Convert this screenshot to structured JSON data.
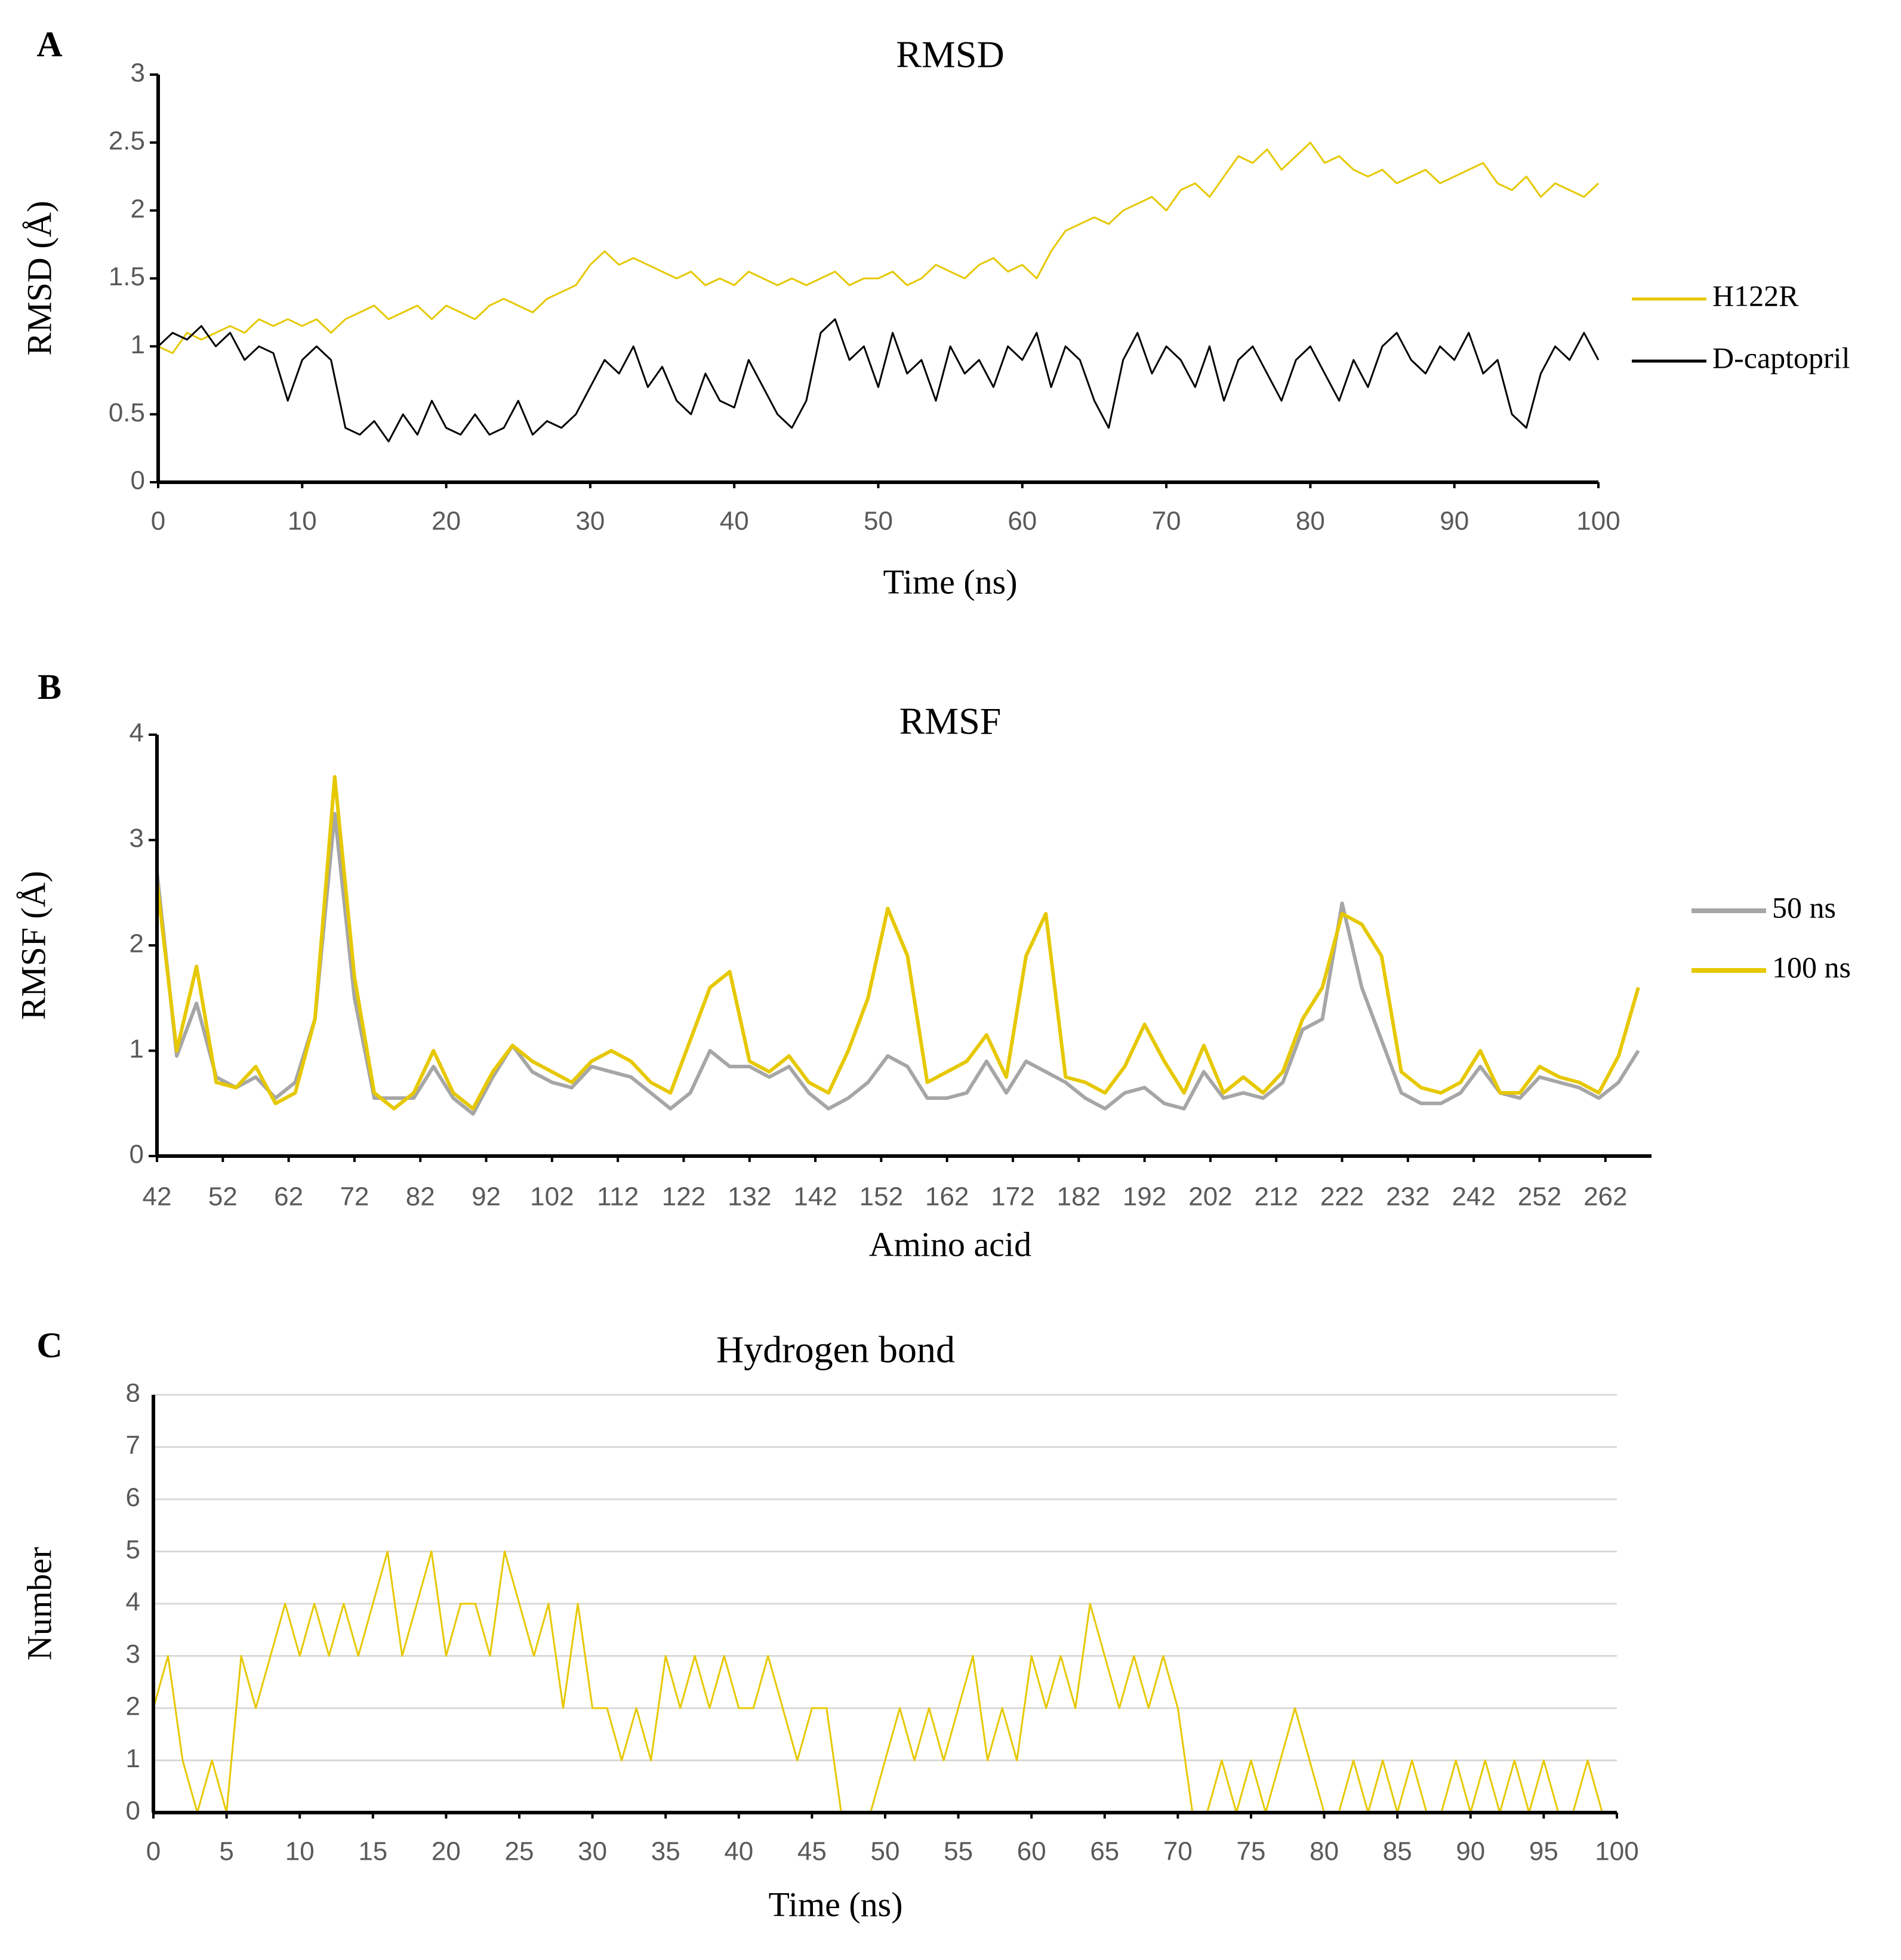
{
  "chart_data": [
    {
      "type": "line",
      "label": "A",
      "title": "RMSD",
      "xlabel": "Time (ns)",
      "ylabel": "RMSD (Å)",
      "xlim": [
        0,
        100
      ],
      "xticks": [
        0,
        10,
        20,
        30,
        40,
        50,
        60,
        70,
        80,
        90,
        100
      ],
      "ylim": [
        0,
        3
      ],
      "yticks": [
        0,
        0.5,
        1,
        1.5,
        2,
        2.5,
        3
      ],
      "grid": false,
      "legend": "right",
      "x": [
        0,
        1,
        2,
        3,
        4,
        5,
        6,
        7,
        8,
        9,
        10,
        11,
        12,
        13,
        14,
        15,
        16,
        17,
        18,
        19,
        20,
        21,
        22,
        23,
        24,
        25,
        26,
        27,
        28,
        29,
        30,
        31,
        32,
        33,
        34,
        35,
        36,
        37,
        38,
        39,
        40,
        41,
        42,
        43,
        44,
        45,
        46,
        47,
        48,
        49,
        50,
        51,
        52,
        53,
        54,
        55,
        56,
        57,
        58,
        59,
        60,
        61,
        62,
        63,
        64,
        65,
        66,
        67,
        68,
        69,
        70,
        71,
        72,
        73,
        74,
        75,
        76,
        77,
        78,
        79,
        80,
        81,
        82,
        83,
        84,
        85,
        86,
        87,
        88,
        89,
        90,
        91,
        92,
        93,
        94,
        95,
        96,
        97,
        98,
        99,
        100
      ],
      "series": [
        {
          "name": "H122R",
          "color": "#e6c800",
          "values": [
            1.0,
            0.95,
            1.1,
            1.05,
            1.1,
            1.15,
            1.1,
            1.2,
            1.15,
            1.2,
            1.15,
            1.2,
            1.1,
            1.2,
            1.25,
            1.3,
            1.2,
            1.25,
            1.3,
            1.2,
            1.3,
            1.25,
            1.2,
            1.3,
            1.35,
            1.3,
            1.25,
            1.35,
            1.4,
            1.45,
            1.6,
            1.7,
            1.6,
            1.65,
            1.6,
            1.55,
            1.5,
            1.55,
            1.45,
            1.5,
            1.45,
            1.55,
            1.5,
            1.45,
            1.5,
            1.45,
            1.5,
            1.55,
            1.45,
            1.5,
            1.5,
            1.55,
            1.45,
            1.5,
            1.6,
            1.55,
            1.5,
            1.6,
            1.65,
            1.55,
            1.6,
            1.5,
            1.7,
            1.85,
            1.9,
            1.95,
            1.9,
            2.0,
            2.05,
            2.1,
            2.0,
            2.15,
            2.2,
            2.1,
            2.25,
            2.4,
            2.35,
            2.45,
            2.3,
            2.4,
            2.5,
            2.35,
            2.4,
            2.3,
            2.25,
            2.3,
            2.2,
            2.25,
            2.3,
            2.2,
            2.25,
            2.3,
            2.35,
            2.2,
            2.15,
            2.25,
            2.1,
            2.2,
            2.15,
            2.1,
            2.2
          ]
        },
        {
          "name": "D-captopril",
          "color": "#000000",
          "values": [
            1.0,
            1.1,
            1.05,
            1.15,
            1.0,
            1.1,
            0.9,
            1.0,
            0.95,
            0.6,
            0.9,
            1.0,
            0.9,
            0.4,
            0.35,
            0.45,
            0.3,
            0.5,
            0.35,
            0.6,
            0.4,
            0.35,
            0.5,
            0.35,
            0.4,
            0.6,
            0.35,
            0.45,
            0.4,
            0.5,
            0.7,
            0.9,
            0.8,
            1.0,
            0.7,
            0.85,
            0.6,
            0.5,
            0.8,
            0.6,
            0.55,
            0.9,
            0.7,
            0.5,
            0.4,
            0.6,
            1.1,
            1.2,
            0.9,
            1.0,
            0.7,
            1.1,
            0.8,
            0.9,
            0.6,
            1.0,
            0.8,
            0.9,
            0.7,
            1.0,
            0.9,
            1.1,
            0.7,
            1.0,
            0.9,
            0.6,
            0.4,
            0.9,
            1.1,
            0.8,
            1.0,
            0.9,
            0.7,
            1.0,
            0.6,
            0.9,
            1.0,
            0.8,
            0.6,
            0.9,
            1.0,
            0.8,
            0.6,
            0.9,
            0.7,
            1.0,
            1.1,
            0.9,
            0.8,
            1.0,
            0.9,
            1.1,
            0.8,
            0.9,
            0.5,
            0.4,
            0.8,
            1.0,
            0.9,
            1.1,
            0.9
          ]
        }
      ]
    },
    {
      "type": "line",
      "label": "B",
      "title": "RMSF",
      "xlabel": "Amino acid",
      "ylabel": "RMSF (Å)",
      "xlim": [
        42,
        269
      ],
      "xticks": [
        42,
        52,
        62,
        72,
        82,
        92,
        102,
        112,
        122,
        132,
        142,
        152,
        162,
        172,
        182,
        192,
        202,
        212,
        222,
        232,
        242,
        252,
        262
      ],
      "ylim": [
        0,
        4
      ],
      "yticks": [
        0,
        1,
        2,
        3,
        4
      ],
      "grid": false,
      "legend": "right",
      "x": [
        42,
        45,
        48,
        51,
        54,
        57,
        60,
        63,
        66,
        69,
        72,
        75,
        78,
        81,
        84,
        87,
        90,
        93,
        96,
        99,
        102,
        105,
        108,
        111,
        114,
        117,
        120,
        123,
        126,
        129,
        132,
        135,
        138,
        141,
        144,
        147,
        150,
        153,
        156,
        159,
        162,
        165,
        168,
        171,
        174,
        177,
        180,
        183,
        186,
        189,
        192,
        195,
        198,
        201,
        204,
        207,
        210,
        213,
        216,
        219,
        222,
        225,
        228,
        231,
        234,
        237,
        240,
        243,
        246,
        249,
        252,
        255,
        258,
        261,
        264,
        267
      ],
      "series": [
        {
          "name": "50 ns",
          "color": "#a6a6a6",
          "values": [
            2.7,
            0.95,
            1.45,
            0.75,
            0.65,
            0.75,
            0.55,
            0.7,
            1.3,
            3.25,
            1.5,
            0.55,
            0.55,
            0.55,
            0.85,
            0.55,
            0.4,
            0.75,
            1.05,
            0.8,
            0.7,
            0.65,
            0.85,
            0.8,
            0.75,
            0.6,
            0.45,
            0.6,
            1.0,
            0.85,
            0.85,
            0.75,
            0.85,
            0.6,
            0.45,
            0.55,
            0.7,
            0.95,
            0.85,
            0.55,
            0.55,
            0.6,
            0.9,
            0.6,
            0.9,
            0.8,
            0.7,
            0.55,
            0.45,
            0.6,
            0.65,
            0.5,
            0.45,
            0.8,
            0.55,
            0.6,
            0.55,
            0.7,
            1.2,
            1.3,
            2.4,
            1.6,
            1.1,
            0.6,
            0.5,
            0.5,
            0.6,
            0.85,
            0.6,
            0.55,
            0.75,
            0.7,
            0.65,
            0.55,
            0.7,
            1.0
          ]
        },
        {
          "name": "100 ns",
          "color": "#e6c800",
          "values": [
            2.6,
            1.0,
            1.8,
            0.7,
            0.65,
            0.85,
            0.5,
            0.6,
            1.3,
            3.6,
            1.7,
            0.6,
            0.45,
            0.6,
            1.0,
            0.6,
            0.45,
            0.8,
            1.05,
            0.9,
            0.8,
            0.7,
            0.9,
            1.0,
            0.9,
            0.7,
            0.6,
            1.1,
            1.6,
            1.75,
            0.9,
            0.8,
            0.95,
            0.7,
            0.6,
            1.0,
            1.5,
            2.35,
            1.9,
            0.7,
            0.8,
            0.9,
            1.15,
            0.75,
            1.9,
            2.3,
            0.75,
            0.7,
            0.6,
            0.85,
            1.25,
            0.9,
            0.6,
            1.05,
            0.6,
            0.75,
            0.6,
            0.8,
            1.3,
            1.6,
            2.3,
            2.2,
            1.9,
            0.8,
            0.65,
            0.6,
            0.7,
            1.0,
            0.6,
            0.6,
            0.85,
            0.75,
            0.7,
            0.6,
            0.95,
            1.6
          ]
        }
      ]
    },
    {
      "type": "line",
      "label": "C",
      "title": "Hydrogen bond",
      "xlabel": "Time (ns)",
      "ylabel": "Number",
      "xlim": [
        0,
        100
      ],
      "xticks": [
        0,
        5,
        10,
        15,
        20,
        25,
        30,
        35,
        40,
        45,
        50,
        55,
        60,
        65,
        70,
        75,
        80,
        85,
        90,
        95,
        100
      ],
      "ylim": [
        0,
        8
      ],
      "yticks": [
        0,
        1,
        2,
        3,
        4,
        5,
        6,
        7,
        8
      ],
      "grid": true,
      "color": "#e6c800",
      "x": [
        0,
        1,
        2,
        3,
        4,
        5,
        6,
        7,
        8,
        9,
        10,
        11,
        12,
        13,
        14,
        15,
        16,
        17,
        18,
        19,
        20,
        21,
        22,
        23,
        24,
        25,
        26,
        27,
        28,
        29,
        30,
        31,
        32,
        33,
        34,
        35,
        36,
        37,
        38,
        39,
        40,
        41,
        42,
        43,
        44,
        45,
        46,
        47,
        48,
        49,
        50,
        51,
        52,
        53,
        54,
        55,
        56,
        57,
        58,
        59,
        60,
        61,
        62,
        63,
        64,
        65,
        66,
        67,
        68,
        69,
        70,
        71,
        72,
        73,
        74,
        75,
        76,
        77,
        78,
        79,
        80,
        81,
        82,
        83,
        84,
        85,
        86,
        87,
        88,
        89,
        90,
        91,
        92,
        93,
        94,
        95,
        96,
        97,
        98,
        99,
        100
      ],
      "values": [
        2,
        3,
        1,
        0,
        1,
        0,
        3,
        2,
        3,
        4,
        3,
        4,
        3,
        4,
        3,
        4,
        5,
        3,
        4,
        5,
        3,
        4,
        4,
        3,
        5,
        4,
        3,
        4,
        2,
        4,
        2,
        2,
        1,
        2,
        1,
        3,
        2,
        3,
        2,
        3,
        2,
        2,
        3,
        2,
        1,
        2,
        2,
        0,
        0,
        0,
        1,
        2,
        1,
        2,
        1,
        2,
        3,
        1,
        2,
        1,
        3,
        2,
        3,
        2,
        4,
        3,
        2,
        3,
        2,
        3,
        2,
        0,
        0,
        1,
        0,
        1,
        0,
        1,
        2,
        1,
        0,
        0,
        1,
        0,
        1,
        0,
        1,
        0,
        0,
        1,
        0,
        1,
        0,
        1,
        0,
        1,
        0,
        0,
        1,
        0,
        0
      ]
    }
  ]
}
